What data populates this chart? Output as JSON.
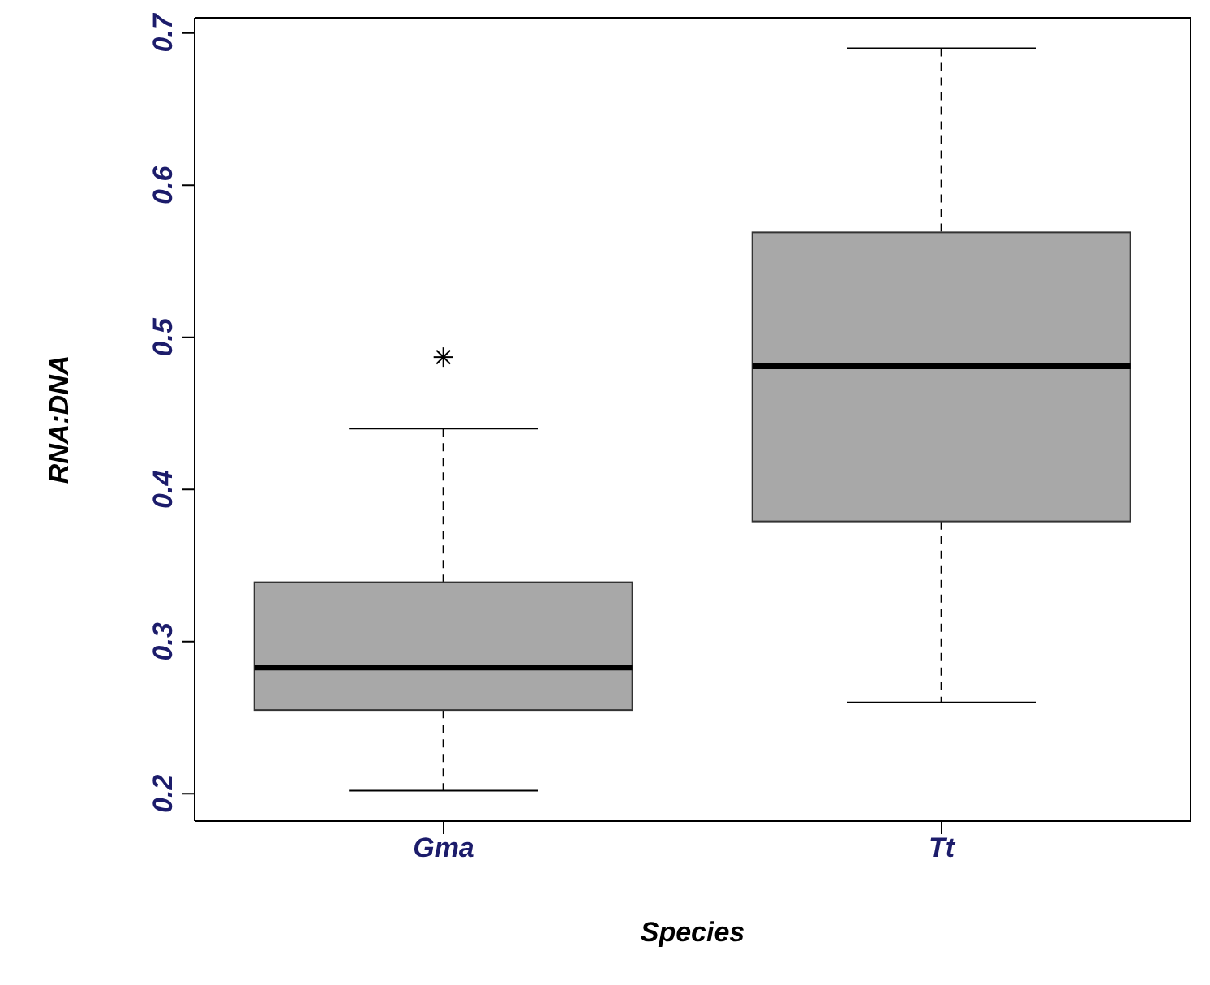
{
  "chart_data": {
    "type": "box",
    "categories": [
      "Gma",
      "Tt"
    ],
    "xlabel": "Species",
    "ylabel": "RNA:DNA",
    "ylim": [
      0.182,
      0.71
    ],
    "yticks": [
      0.2,
      0.3,
      0.4,
      0.5,
      0.6,
      0.7
    ],
    "series": [
      {
        "color": "#a8a8a8",
        "boxes": [
          {
            "low": 0.202,
            "q1": 0.255,
            "median": 0.283,
            "q3": 0.339,
            "high": 0.44,
            "outliers": [
              0.487
            ]
          },
          {
            "low": 0.26,
            "q1": 0.379,
            "median": 0.481,
            "q3": 0.569,
            "high": 0.69
          }
        ]
      }
    ]
  }
}
